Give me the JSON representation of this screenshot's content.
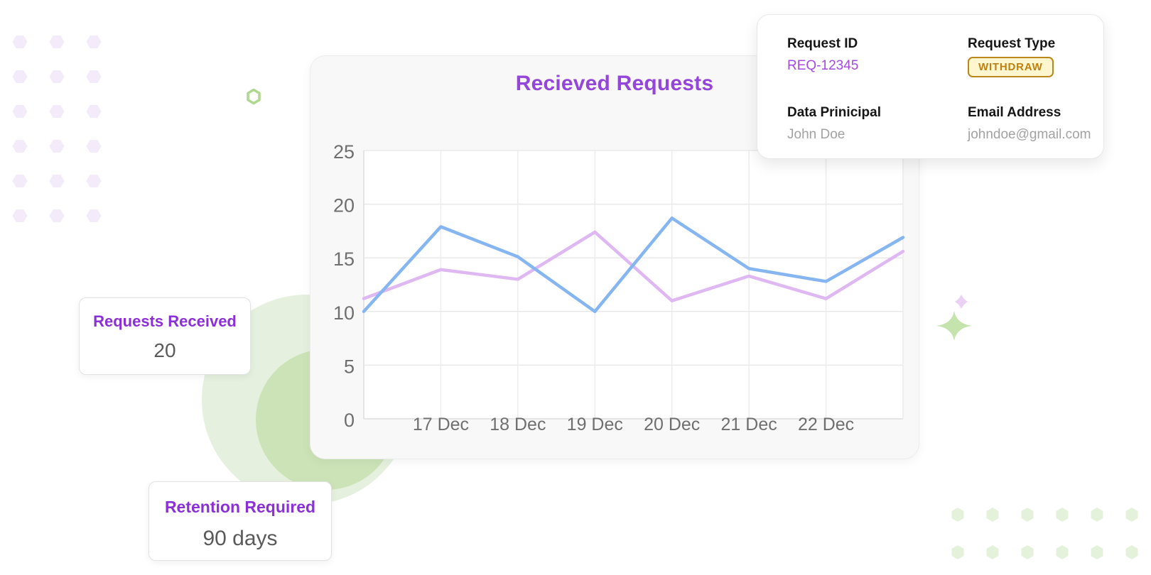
{
  "chart_data": {
    "type": "line",
    "title": "Recieved Requests",
    "title_color": "#9445da",
    "categories": [
      "",
      "17 Dec",
      "18 Dec",
      "19 Dec",
      "20 Dec",
      "21 Dec",
      "22 Dec",
      ""
    ],
    "series": [
      {
        "name": "series-1",
        "color": "#deb7f3",
        "values": [
          11.2,
          13.9,
          13.0,
          17.4,
          11.0,
          13.3,
          11.2,
          15.6
        ]
      },
      {
        "name": "series-2",
        "color": "#85b6f2",
        "values": [
          10.0,
          17.9,
          15.1,
          10.0,
          18.7,
          14.0,
          12.8,
          16.9
        ]
      }
    ],
    "ylim": [
      0,
      25
    ],
    "yticks": [
      0,
      5,
      10,
      15,
      20,
      25
    ],
    "grid": true,
    "legend": "none",
    "xlabel": "",
    "ylabel": ""
  },
  "stat_cards": [
    {
      "label": "Requests Received",
      "value": "20"
    },
    {
      "label": "Retention Required",
      "value": "90 days"
    }
  ],
  "info_card": {
    "fields": [
      {
        "label": "Request ID",
        "value": "REQ-12345"
      },
      {
        "label": "Request Type",
        "value": "WITHDRAW"
      },
      {
        "label": "Data Prinicipal",
        "value": "John Doe"
      },
      {
        "label": "Email Address",
        "value": "johndoe@gmail.com"
      }
    ]
  },
  "decor": {
    "purple_hex_color": "#f3ebfa",
    "green_hex_color": "#e4f1db",
    "green_hex_outline_color": "#aed88e",
    "circle_outer_color": "#e6f0de",
    "circle_inner_color": "#cce3b7",
    "green_sparkle_color": "#c5e3ad",
    "purple_sparkle_color": "#dfb3f0"
  }
}
